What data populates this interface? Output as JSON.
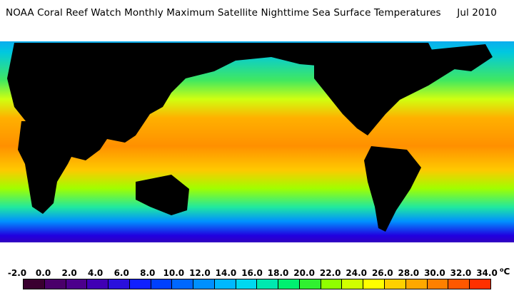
{
  "header": {
    "title": "NOAA Coral Reef Watch Monthly Maximum Satellite Nighttime Sea Surface Temperatures",
    "date": "Jul 2010"
  },
  "legend": {
    "ticks": [
      "-2.0",
      "0.0",
      "2.0",
      "4.0",
      "6.0",
      "8.0",
      "10.0",
      "12.0",
      "14.0",
      "16.0",
      "18.0",
      "20.0",
      "22.0",
      "24.0",
      "26.0",
      "28.0",
      "30.0",
      "32.0",
      "34.0"
    ],
    "unit_symbol": "o",
    "unit_letter": "C",
    "colors": [
      "#3a0030",
      "#4a006a",
      "#4c008c",
      "#4000b4",
      "#2a10dc",
      "#1020ff",
      "#0040ff",
      "#0068ff",
      "#0090ff",
      "#00b8ff",
      "#00d8f0",
      "#00e8b0",
      "#00f070",
      "#30f030",
      "#90ff00",
      "#d0ff00",
      "#ffff00",
      "#ffd000",
      "#ffa800",
      "#ff8000",
      "#ff5800",
      "#ff3000"
    ]
  }
}
